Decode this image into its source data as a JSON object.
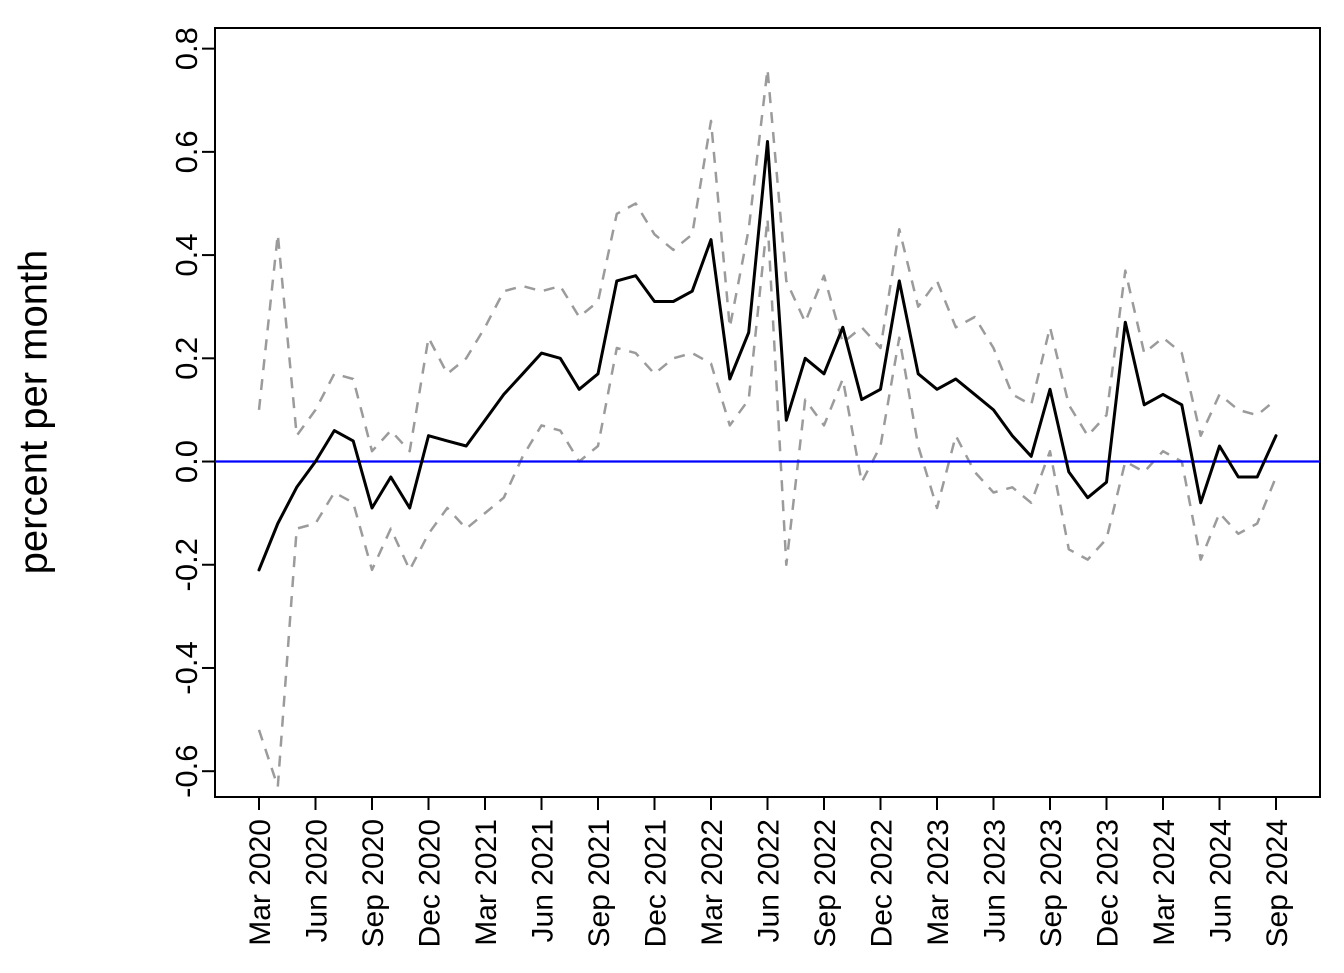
{
  "chart_data": {
    "type": "line",
    "title": "",
    "xlabel": "",
    "ylabel": "percent per month",
    "ylim": [
      -0.65,
      0.84
    ],
    "yticks": [
      -0.6,
      -0.4,
      -0.2,
      0.0,
      0.2,
      0.4,
      0.6,
      0.8
    ],
    "xtick_labels": [
      "Mar 2020",
      "Jun 2020",
      "Sep 2020",
      "Dec 2020",
      "Mar 2021",
      "Jun 2021",
      "Sep 2021",
      "Dec 2021",
      "Mar 2022",
      "Jun 2022",
      "Sep 2022",
      "Dec 2022",
      "Mar 2023",
      "Jun 2023",
      "Sep 2023",
      "Dec 2023",
      "Mar 2024",
      "Jun 2024",
      "Sep 2024"
    ],
    "xtick_indices": [
      0,
      3,
      6,
      9,
      12,
      15,
      18,
      21,
      24,
      27,
      30,
      33,
      36,
      39,
      42,
      45,
      48,
      51,
      54
    ],
    "x_frequency": "monthly",
    "grid": false,
    "legend": "none",
    "reference_line": {
      "y": 0,
      "color": "#0000FF"
    },
    "series": [
      {
        "name": "point-estimate",
        "color": "#000000",
        "dashed": false,
        "width": 3,
        "values": [
          -0.21,
          -0.12,
          -0.05,
          0.0,
          0.06,
          0.04,
          -0.09,
          -0.03,
          -0.09,
          0.05,
          0.04,
          0.03,
          0.08,
          0.13,
          0.17,
          0.21,
          0.2,
          0.14,
          0.17,
          0.35,
          0.36,
          0.31,
          0.31,
          0.33,
          0.43,
          0.16,
          0.25,
          0.62,
          0.08,
          0.2,
          0.17,
          0.26,
          0.12,
          0.14,
          0.35,
          0.17,
          0.14,
          0.16,
          0.13,
          0.1,
          0.05,
          0.01,
          0.14,
          -0.02,
          -0.07,
          -0.04,
          0.27,
          0.11,
          0.13,
          0.11,
          -0.08,
          0.03,
          -0.03,
          -0.03,
          0.05
        ]
      },
      {
        "name": "upper-confidence-band",
        "color": "#9B9B9B",
        "dashed": true,
        "width": 2.5,
        "values": [
          0.1,
          0.44,
          0.05,
          0.1,
          0.17,
          0.16,
          0.02,
          0.06,
          0.02,
          0.24,
          0.17,
          0.2,
          0.26,
          0.33,
          0.34,
          0.33,
          0.34,
          0.28,
          0.31,
          0.48,
          0.5,
          0.44,
          0.41,
          0.44,
          0.66,
          0.26,
          0.45,
          0.76,
          0.35,
          0.27,
          0.36,
          0.23,
          0.26,
          0.22,
          0.45,
          0.3,
          0.35,
          0.26,
          0.28,
          0.22,
          0.13,
          0.11,
          0.26,
          0.11,
          0.05,
          0.09,
          0.37,
          0.21,
          0.24,
          0.21,
          0.05,
          0.13,
          0.1,
          0.09,
          0.12
        ]
      },
      {
        "name": "lower-confidence-band",
        "color": "#9B9B9B",
        "dashed": true,
        "width": 2.5,
        "values": [
          -0.52,
          -0.63,
          -0.13,
          -0.12,
          -0.06,
          -0.08,
          -0.21,
          -0.13,
          -0.21,
          -0.14,
          -0.09,
          -0.13,
          -0.1,
          -0.07,
          0.01,
          0.07,
          0.06,
          0.0,
          0.03,
          0.22,
          0.21,
          0.17,
          0.2,
          0.21,
          0.19,
          0.07,
          0.12,
          0.47,
          -0.2,
          0.12,
          0.07,
          0.16,
          -0.04,
          0.03,
          0.24,
          0.03,
          -0.09,
          0.05,
          -0.02,
          -0.06,
          -0.05,
          -0.08,
          0.02,
          -0.17,
          -0.19,
          -0.15,
          0.0,
          -0.02,
          0.02,
          0.0,
          -0.19,
          -0.1,
          -0.14,
          -0.12,
          -0.03
        ]
      }
    ]
  }
}
